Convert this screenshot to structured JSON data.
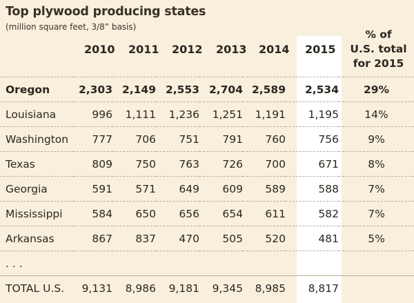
{
  "title": "Top plywood producing states",
  "subtitle": "(million square feet, 3/8” basis)",
  "years": [
    "2010",
    "2011",
    "2012",
    "2013",
    "2014",
    "2015"
  ],
  "pct_header": [
    "% of",
    "U.S. total",
    "for 2015"
  ],
  "rows": [
    {
      "state": "Oregon",
      "values": [
        "2,303",
        "2,149",
        "2,553",
        "2,704",
        "2,589",
        "2,534"
      ],
      "pct": "29%"
    },
    {
      "state": "Louisiana",
      "values": [
        "996",
        "1,111",
        "1,236",
        "1,251",
        "1,191",
        "1,195"
      ],
      "pct": "14%"
    },
    {
      "state": "Washington",
      "values": [
        "777",
        "706",
        "751",
        "791",
        "760",
        "756"
      ],
      "pct": "9%"
    },
    {
      "state": "Texas",
      "values": [
        "809",
        "750",
        "763",
        "726",
        "700",
        "671"
      ],
      "pct": "8%"
    },
    {
      "state": "Georgia",
      "values": [
        "591",
        "571",
        "649",
        "609",
        "589",
        "588"
      ],
      "pct": "7%"
    },
    {
      "state": "Mississippi",
      "values": [
        "584",
        "650",
        "656",
        "654",
        "611",
        "582"
      ],
      "pct": "7%"
    },
    {
      "state": "Arkansas",
      "values": [
        "867",
        "837",
        "470",
        "505",
        "520",
        "481"
      ],
      "pct": "5%"
    }
  ],
  "ellipsis": ". . .",
  "total": {
    "label": "TOTAL U.S.",
    "values": [
      "9,131",
      "8,986",
      "9,181",
      "9,345",
      "8,985",
      "8,817"
    ]
  }
}
